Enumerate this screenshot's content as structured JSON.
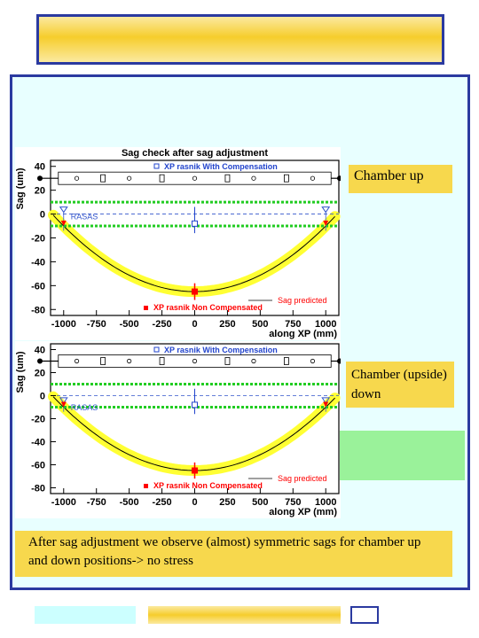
{
  "labels": {
    "chamber_up": "Chamber up",
    "chamber_down": "Chamber (upside) down",
    "note": "After sag adjustment we observe (almost) symmetric sags for chamber up and down positions-> no stress"
  },
  "colors": {
    "frame": "#2b3aa0",
    "band": "#ffff33",
    "curve": "#000000",
    "tolerance": "#22cc22",
    "compensated": "#2244cc",
    "noncompensated": "#ff0000",
    "note_bg": "#f7d84d"
  },
  "chart_data": [
    {
      "type": "line",
      "title": "Sag check after sag adjustment",
      "xlabel": "along XP (mm)",
      "ylabel": "Sag (um)",
      "xlim": [
        -1100,
        1100
      ],
      "ylim": [
        -85,
        45
      ],
      "xticks": [
        -1000,
        -750,
        -500,
        -250,
        0,
        250,
        500,
        750,
        1000
      ],
      "yticks": [
        40,
        20,
        0,
        -20,
        -40,
        -60,
        -80
      ],
      "xtick_labels": [
        "-1000",
        "-750",
        "-500",
        "-250",
        "0",
        "250",
        "500",
        "750",
        "1000"
      ],
      "ytick_labels": [
        "40",
        "20",
        "0",
        "-20",
        "-40",
        "-60",
        "-80"
      ],
      "tolerance_lines": [
        10,
        -10
      ],
      "predicted_curve": {
        "x": [
          -1000,
          -750,
          -500,
          -250,
          0,
          250,
          500,
          750,
          1000
        ],
        "y": [
          -10,
          -37,
          -54,
          -62,
          -65,
          -62,
          -54,
          -37,
          -10
        ]
      },
      "legend": {
        "compensated": "XP rasnik With Compensation",
        "noncompensated": "XP rasnik Non Compensated",
        "predicted": "Sag predicted"
      },
      "annotation": "RASAS",
      "series": [
        {
          "name": "XP rasnik With Compensation",
          "x": [
            0
          ],
          "y": [
            -8
          ]
        },
        {
          "name": "XP rasnik Non Compensated",
          "x": [
            0
          ],
          "y": [
            -65
          ]
        },
        {
          "name": "RASAS",
          "x": [
            -1000,
            1000
          ],
          "y": [
            0,
            0
          ]
        }
      ]
    },
    {
      "type": "line",
      "title": "",
      "xlabel": "along XP (mm)",
      "ylabel": "Sag (um)",
      "xlim": [
        -1100,
        1100
      ],
      "ylim": [
        -85,
        45
      ],
      "xticks": [
        -1000,
        -750,
        -500,
        -250,
        0,
        250,
        500,
        750,
        1000
      ],
      "yticks": [
        40,
        20,
        0,
        -20,
        -40,
        -60,
        -80
      ],
      "xtick_labels": [
        "-1000",
        "-750",
        "-500",
        "-250",
        "0",
        "250",
        "500",
        "750",
        "1000"
      ],
      "ytick_labels": [
        "40",
        "20",
        "0",
        "-20",
        "-40",
        "-60",
        "-80"
      ],
      "tolerance_lines": [
        10,
        -10
      ],
      "predicted_curve": {
        "x": [
          -1000,
          -750,
          -500,
          -250,
          0,
          250,
          500,
          750,
          1000
        ],
        "y": [
          -10,
          -37,
          -54,
          -62,
          -65,
          -62,
          -54,
          -37,
          -10
        ]
      },
      "legend": {
        "compensated": "XP rasnik With Compensation",
        "noncompensated": "XP rasnik Non Compensated",
        "predicted": "Sag predicted"
      },
      "annotation": "RASAS",
      "series": [
        {
          "name": "XP rasnik With Compensation",
          "x": [
            0
          ],
          "y": [
            -8
          ]
        },
        {
          "name": "XP rasnik Non Compensated",
          "x": [
            0
          ],
          "y": [
            -65
          ]
        },
        {
          "name": "RASAS",
          "x": [
            -1000,
            1000
          ],
          "y": [
            -8,
            -8
          ]
        }
      ]
    }
  ]
}
